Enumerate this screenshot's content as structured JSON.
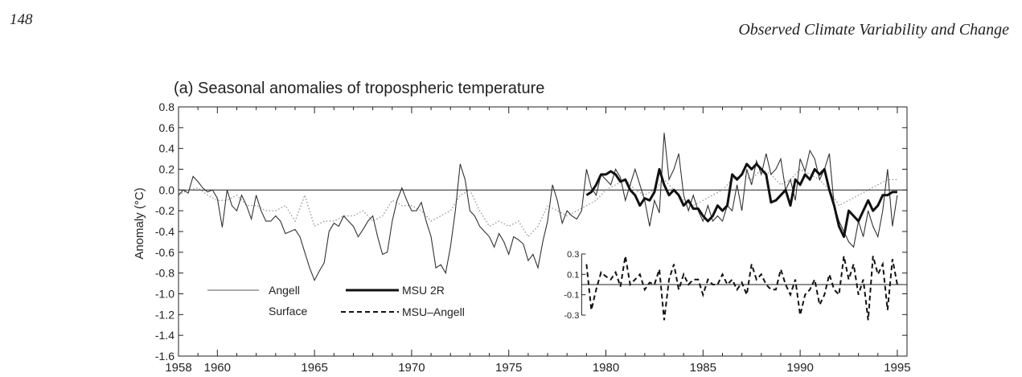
{
  "page": {
    "number": "148",
    "running_head": "Observed Climate Variability and Change"
  },
  "colors": {
    "ink": "#222222",
    "surface": "#9a9a9a"
  },
  "chart_data": {
    "type": "line",
    "title": "(a) Seasonal anomalies of tropospheric temperature",
    "ylabel": "Anomaly (°C)",
    "xlabel": "",
    "xlim": [
      1958,
      1995.5
    ],
    "ylim": [
      -1.6,
      0.8
    ],
    "x_ticks": [
      1960,
      1965,
      1970,
      1975,
      1980,
      1985,
      1990,
      1995
    ],
    "x_tick_labels": [
      "1958",
      "1960",
      "1965",
      "1970",
      "1975",
      "1980",
      "1985",
      "1990",
      "1995"
    ],
    "x_tick_label_values": [
      1958,
      1960,
      1965,
      1970,
      1975,
      1980,
      1985,
      1990,
      1995
    ],
    "y_ticks": [
      0.8,
      0.6,
      0.4,
      0.2,
      0.0,
      -0.2,
      -0.4,
      -0.6,
      -0.8,
      -1.0,
      -1.2,
      -1.4,
      -1.6
    ],
    "y_tick_labels": [
      "0.8",
      "0.6",
      "0.4",
      "0.2",
      "0.0",
      "-0.2",
      "-0.4",
      "-0.6",
      "-0.8",
      "-1.0",
      "-1.2",
      "-1.4",
      "-1.6"
    ],
    "legend": [
      {
        "label": "Angell",
        "style": "thin-solid"
      },
      {
        "label": "MSU 2R",
        "style": "thick-solid"
      },
      {
        "label": "Surface",
        "style": "dotted-gray"
      },
      {
        "label": "MSU–Angell",
        "style": "dashed"
      }
    ],
    "series": [
      {
        "name": "Angell",
        "style": "thin-solid",
        "x": [
          1958.0,
          1958.25,
          1958.5,
          1958.75,
          1959.0,
          1959.25,
          1959.5,
          1959.75,
          1960.0,
          1960.25,
          1960.5,
          1960.75,
          1961.0,
          1961.25,
          1961.5,
          1961.75,
          1962.0,
          1962.25,
          1962.5,
          1962.75,
          1963.0,
          1963.25,
          1963.5,
          1963.75,
          1964.0,
          1964.25,
          1964.5,
          1964.75,
          1965.0,
          1965.25,
          1965.5,
          1965.75,
          1966.0,
          1966.25,
          1966.5,
          1966.75,
          1967.0,
          1967.25,
          1967.5,
          1967.75,
          1968.0,
          1968.25,
          1968.5,
          1968.75,
          1969.0,
          1969.25,
          1969.5,
          1969.75,
          1970.0,
          1970.25,
          1970.5,
          1970.75,
          1971.0,
          1971.25,
          1971.5,
          1971.75,
          1972.0,
          1972.25,
          1972.5,
          1972.75,
          1973.0,
          1973.25,
          1973.5,
          1973.75,
          1974.0,
          1974.25,
          1974.5,
          1974.75,
          1975.0,
          1975.25,
          1975.5,
          1975.75,
          1976.0,
          1976.25,
          1976.5,
          1976.75,
          1977.0,
          1977.25,
          1977.5,
          1977.75,
          1978.0,
          1978.25,
          1978.5,
          1978.75,
          1979.0,
          1979.25,
          1979.5,
          1979.75,
          1980.0,
          1980.25,
          1980.5,
          1980.75,
          1981.0,
          1981.25,
          1981.5,
          1981.75,
          1982.0,
          1982.25,
          1982.5,
          1982.75,
          1983.0,
          1983.25,
          1983.5,
          1983.75,
          1984.0,
          1984.25,
          1984.5,
          1984.75,
          1985.0,
          1985.25,
          1985.5,
          1985.75,
          1986.0,
          1986.25,
          1986.5,
          1986.75,
          1987.0,
          1987.25,
          1987.5,
          1987.75,
          1988.0,
          1988.25,
          1988.5,
          1988.75,
          1989.0,
          1989.25,
          1989.5,
          1989.75,
          1990.0,
          1990.25,
          1990.5,
          1990.75,
          1991.0,
          1991.25,
          1991.5,
          1991.75,
          1992.0,
          1992.25,
          1992.5,
          1992.75,
          1993.0,
          1993.25,
          1993.5,
          1993.75,
          1994.0,
          1994.25,
          1994.5,
          1994.75,
          1995.0
        ],
        "y": [
          -0.05,
          0.0,
          -0.03,
          0.13,
          0.08,
          0.02,
          -0.02,
          0.0,
          -0.08,
          -0.36,
          0.0,
          -0.15,
          -0.2,
          -0.05,
          -0.15,
          -0.28,
          -0.05,
          -0.2,
          -0.3,
          -0.3,
          -0.25,
          -0.3,
          -0.42,
          -0.4,
          -0.38,
          -0.45,
          -0.6,
          -0.75,
          -0.87,
          -0.78,
          -0.7,
          -0.4,
          -0.32,
          -0.35,
          -0.25,
          -0.3,
          -0.35,
          -0.45,
          -0.38,
          -0.3,
          -0.25,
          -0.45,
          -0.62,
          -0.6,
          -0.3,
          -0.1,
          0.02,
          -0.1,
          -0.2,
          -0.2,
          -0.12,
          -0.3,
          -0.45,
          -0.75,
          -0.72,
          -0.8,
          -0.55,
          -0.2,
          0.25,
          0.1,
          -0.2,
          -0.25,
          -0.35,
          -0.4,
          -0.45,
          -0.55,
          -0.42,
          -0.5,
          -0.62,
          -0.45,
          -0.48,
          -0.52,
          -0.68,
          -0.62,
          -0.75,
          -0.5,
          -0.3,
          0.05,
          -0.1,
          -0.32,
          -0.2,
          -0.25,
          -0.28,
          -0.2,
          0.2,
          0.02,
          -0.05,
          0.15,
          0.1,
          0.05,
          0.2,
          0.12,
          -0.1,
          0.05,
          0.2,
          0.05,
          -0.1,
          -0.35,
          -0.1,
          -0.22,
          0.55,
          0.1,
          0.2,
          0.35,
          -0.05,
          -0.2,
          -0.05,
          -0.2,
          -0.3,
          -0.15,
          -0.3,
          -0.25,
          -0.3,
          -0.15,
          -0.2,
          0.05,
          -0.2,
          0.2,
          0.05,
          0.28,
          0.15,
          0.35,
          0.15,
          0.2,
          0.3,
          0.0,
          0.1,
          -0.1,
          0.3,
          0.18,
          0.38,
          0.3,
          0.1,
          0.2,
          0.35,
          -0.15,
          -0.3,
          -0.4,
          -0.5,
          -0.55,
          -0.3,
          -0.45,
          -0.2,
          -0.35,
          -0.45,
          -0.2,
          0.2,
          -0.35,
          -0.05
        ]
      },
      {
        "name": "MSU 2R",
        "style": "thick-solid",
        "x": [
          1979.0,
          1979.25,
          1979.5,
          1979.75,
          1980.0,
          1980.25,
          1980.5,
          1980.75,
          1981.0,
          1981.25,
          1981.5,
          1981.75,
          1982.0,
          1982.25,
          1982.5,
          1982.75,
          1983.0,
          1983.25,
          1983.5,
          1983.75,
          1984.0,
          1984.25,
          1984.5,
          1984.75,
          1985.0,
          1985.25,
          1985.5,
          1985.75,
          1986.0,
          1986.25,
          1986.5,
          1986.75,
          1987.0,
          1987.25,
          1987.5,
          1987.75,
          1988.0,
          1988.25,
          1988.5,
          1988.75,
          1989.0,
          1989.25,
          1989.5,
          1989.75,
          1990.0,
          1990.25,
          1990.5,
          1990.75,
          1991.0,
          1991.25,
          1991.5,
          1991.75,
          1992.0,
          1992.25,
          1992.5,
          1992.75,
          1993.0,
          1993.25,
          1993.5,
          1993.75,
          1994.0,
          1994.25,
          1994.5,
          1994.75,
          1995.0
        ],
        "y": [
          -0.05,
          -0.02,
          0.05,
          0.15,
          0.15,
          0.18,
          0.15,
          0.08,
          0.1,
          0.0,
          -0.05,
          -0.15,
          -0.08,
          -0.1,
          -0.02,
          0.2,
          0.05,
          -0.05,
          0.0,
          -0.05,
          -0.15,
          -0.1,
          -0.18,
          -0.18,
          -0.25,
          -0.3,
          -0.25,
          -0.15,
          -0.2,
          -0.15,
          0.15,
          0.1,
          0.15,
          0.25,
          0.2,
          0.25,
          0.2,
          0.15,
          -0.12,
          -0.1,
          -0.05,
          0.0,
          -0.15,
          0.1,
          0.05,
          0.15,
          0.1,
          0.2,
          0.15,
          0.2,
          0.0,
          -0.15,
          -0.35,
          -0.45,
          -0.2,
          -0.25,
          -0.3,
          -0.2,
          -0.1,
          -0.2,
          -0.15,
          -0.05,
          -0.05,
          -0.02,
          -0.02
        ]
      },
      {
        "name": "Surface",
        "style": "dotted-gray",
        "x": [
          1958.0,
          1958.5,
          1959.0,
          1959.5,
          1960.0,
          1960.5,
          1961.0,
          1961.5,
          1962.0,
          1962.5,
          1963.0,
          1963.5,
          1964.0,
          1964.5,
          1965.0,
          1965.5,
          1966.0,
          1966.5,
          1967.0,
          1967.5,
          1968.0,
          1968.5,
          1969.0,
          1969.5,
          1970.0,
          1970.5,
          1971.0,
          1971.5,
          1972.0,
          1972.5,
          1973.0,
          1973.5,
          1974.0,
          1974.5,
          1975.0,
          1975.5,
          1976.0,
          1976.5,
          1977.0,
          1977.5,
          1978.0,
          1978.5,
          1979.0,
          1979.5,
          1980.0,
          1980.5,
          1981.0,
          1981.5,
          1982.0,
          1982.5,
          1983.0,
          1983.5,
          1984.0,
          1984.5,
          1985.0,
          1985.5,
          1986.0,
          1986.5,
          1987.0,
          1987.5,
          1988.0,
          1988.5,
          1989.0,
          1989.5,
          1990.0,
          1990.5,
          1991.0,
          1991.5,
          1992.0,
          1992.5,
          1993.0,
          1993.5,
          1994.0,
          1994.5,
          1995.0
        ],
        "y": [
          -0.05,
          0.0,
          0.02,
          -0.05,
          -0.1,
          -0.1,
          -0.05,
          -0.15,
          -0.15,
          -0.2,
          -0.2,
          -0.15,
          -0.3,
          -0.05,
          -0.35,
          -0.3,
          -0.3,
          -0.25,
          -0.25,
          -0.2,
          -0.3,
          -0.25,
          -0.1,
          -0.15,
          -0.15,
          -0.2,
          -0.3,
          -0.25,
          -0.2,
          -0.05,
          0.0,
          -0.2,
          -0.35,
          -0.3,
          -0.35,
          -0.3,
          -0.45,
          -0.35,
          -0.15,
          -0.2,
          -0.25,
          -0.2,
          -0.15,
          -0.1,
          0.0,
          0.05,
          0.1,
          0.0,
          -0.05,
          0.0,
          0.1,
          0.0,
          -0.1,
          -0.15,
          -0.1,
          -0.05,
          0.0,
          0.1,
          0.15,
          0.1,
          0.2,
          0.15,
          0.05,
          0.1,
          0.2,
          0.15,
          0.1,
          0.0,
          -0.15,
          -0.1,
          -0.05,
          0.0,
          0.05,
          0.1,
          0.1
        ]
      }
    ],
    "inset": {
      "series_name": "MSU–Angell",
      "style": "dashed",
      "ylim": [
        -0.3,
        0.3
      ],
      "y_ticks": [
        0.3,
        0.1,
        -0.1,
        -0.3
      ],
      "y_tick_labels": [
        "0.3",
        "0.1",
        "-0.1",
        "-0.3"
      ],
      "x": [
        1979.0,
        1979.25,
        1979.5,
        1979.75,
        1980.0,
        1980.25,
        1980.5,
        1980.75,
        1981.0,
        1981.25,
        1981.5,
        1981.75,
        1982.0,
        1982.25,
        1982.5,
        1982.75,
        1983.0,
        1983.25,
        1983.5,
        1983.75,
        1984.0,
        1984.25,
        1984.5,
        1984.75,
        1985.0,
        1985.25,
        1985.5,
        1985.75,
        1986.0,
        1986.25,
        1986.5,
        1986.75,
        1987.0,
        1987.25,
        1987.5,
        1987.75,
        1988.0,
        1988.25,
        1988.5,
        1988.75,
        1989.0,
        1989.25,
        1989.5,
        1989.75,
        1990.0,
        1990.25,
        1990.5,
        1990.75,
        1991.0,
        1991.25,
        1991.5,
        1991.75,
        1992.0,
        1992.25,
        1992.5,
        1992.75,
        1993.0,
        1993.25,
        1993.5,
        1993.75,
        1994.0,
        1994.25,
        1994.5,
        1994.75,
        1995.0
      ],
      "y": [
        0.2,
        -0.25,
        -0.05,
        0.12,
        0.08,
        0.05,
        0.12,
        -0.02,
        0.28,
        0.0,
        0.05,
        0.1,
        -0.05,
        0.02,
        0.0,
        0.15,
        -0.35,
        0.05,
        0.2,
        -0.05,
        0.1,
        0.0,
        0.05,
        0.05,
        -0.1,
        0.05,
        0.0,
        0.0,
        0.1,
        0.0,
        0.05,
        -0.05,
        0.02,
        -0.1,
        0.2,
        0.05,
        0.1,
        0.0,
        -0.05,
        -0.05,
        0.15,
        0.0,
        -0.1,
        0.05,
        -0.3,
        -0.1,
        -0.05,
        0.05,
        -0.2,
        -0.1,
        0.1,
        -0.05,
        -0.1,
        0.28,
        0.05,
        0.2,
        -0.1,
        0.05,
        -0.35,
        0.28,
        0.1,
        0.2,
        -0.25,
        0.25,
        0.0
      ]
    }
  }
}
